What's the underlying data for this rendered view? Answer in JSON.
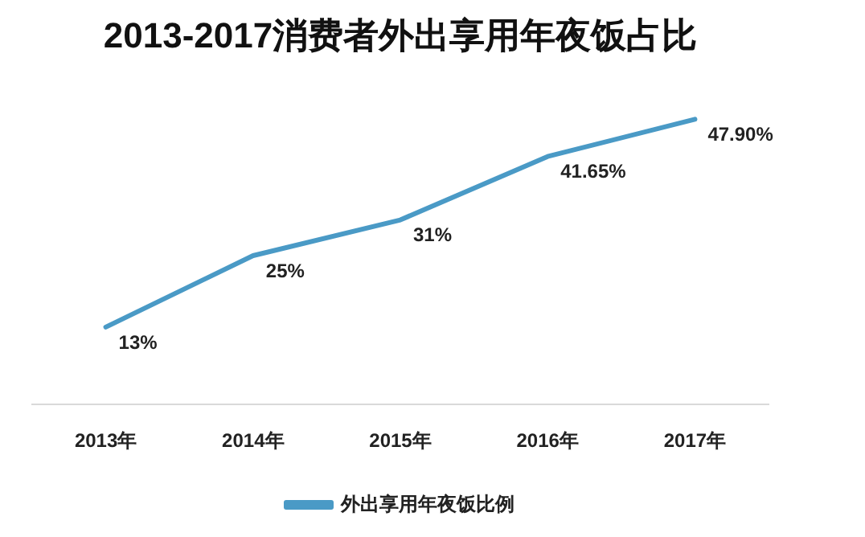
{
  "chart_data": {
    "type": "line",
    "title": "2013-2017消费者外出享用年夜饭占比",
    "categories": [
      "2013年",
      "2014年",
      "2015年",
      "2016年",
      "2017年"
    ],
    "series": [
      {
        "name": "外出享用年夜饭比例",
        "color": "#4a9ac6",
        "values": [
          13,
          25,
          31,
          41.65,
          47.9
        ],
        "value_labels": [
          "13%",
          "25%",
          "31%",
          "41.65%",
          "47.90%"
        ]
      }
    ],
    "legend": "bottom",
    "grid": false,
    "marker": "none",
    "line_style": "solid"
  }
}
